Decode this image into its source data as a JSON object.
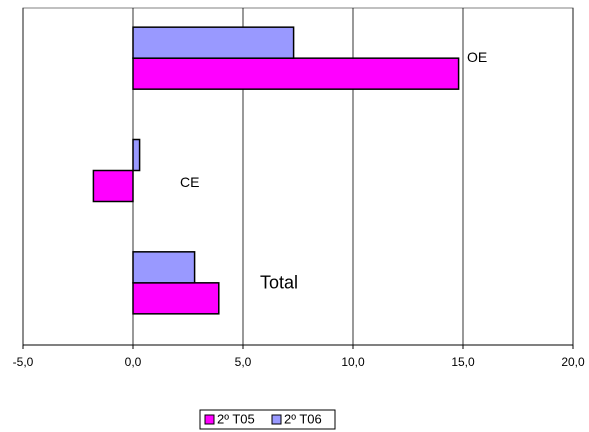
{
  "chart_data": {
    "type": "hbar",
    "categories": [
      "OE",
      "CE",
      "Total"
    ],
    "series": [
      {
        "name": "2º T05",
        "color": "#ff00ff",
        "values": [
          14.8,
          -1.8,
          3.9
        ]
      },
      {
        "name": "2º T06",
        "color": "#9999ff",
        "values": [
          7.3,
          0.3,
          2.8
        ]
      }
    ],
    "xlim": [
      -5,
      20
    ],
    "xticks": [
      {
        "value": -5,
        "label": "-5,0"
      },
      {
        "value": 0,
        "label": "0,0"
      },
      {
        "value": 5,
        "label": "5,0"
      },
      {
        "value": 10,
        "label": "10,0"
      },
      {
        "value": 15,
        "label": "15,0"
      },
      {
        "value": 20,
        "label": "20,0"
      }
    ],
    "grid": true,
    "legend": "bottom"
  }
}
